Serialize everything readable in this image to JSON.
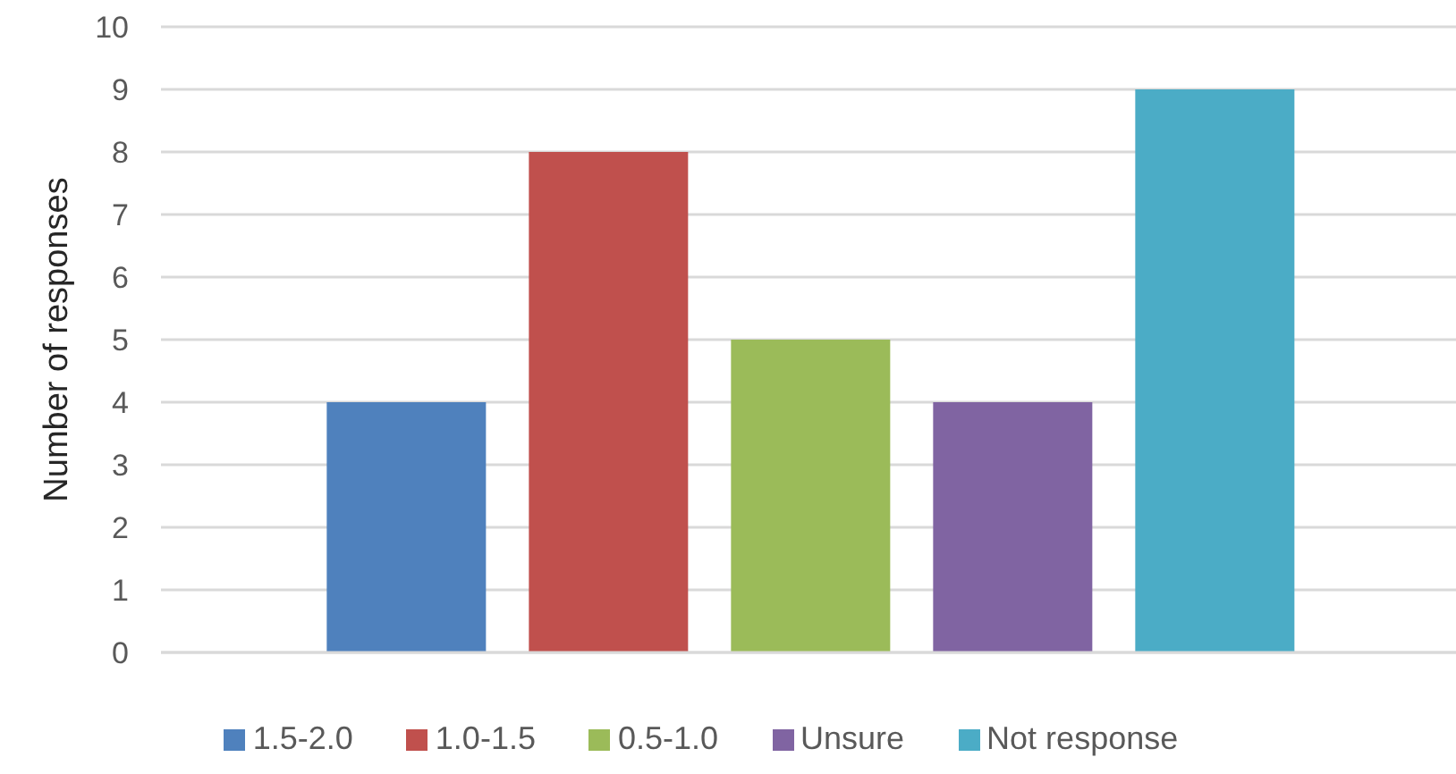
{
  "chart_data": {
    "type": "bar",
    "ylabel": "Number of responses",
    "categories": [
      null
    ],
    "series": [
      {
        "name": "1.5-2.0",
        "color": "#4f81bd",
        "values": [
          4
        ]
      },
      {
        "name": "1.0-1.5",
        "color": "#c0504d",
        "values": [
          8
        ]
      },
      {
        "name": "0.5-1.0",
        "color": "#9bbb59",
        "values": [
          5
        ]
      },
      {
        "name": "Unsure",
        "color": "#8064a2",
        "values": [
          4
        ]
      },
      {
        "name": "Not response",
        "color": "#4bacc6",
        "values": [
          9
        ]
      }
    ],
    "ylim": [
      0,
      10
    ],
    "yticks": [
      0,
      1,
      2,
      3,
      4,
      5,
      6,
      7,
      8,
      9,
      10
    ],
    "grid": "y",
    "legend": "bottom"
  }
}
